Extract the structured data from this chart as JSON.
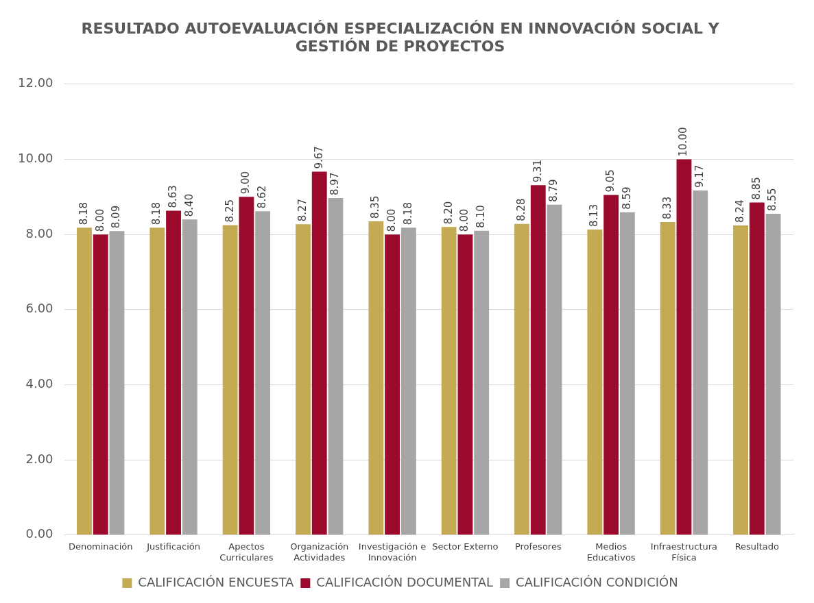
{
  "chart_data": {
    "type": "bar",
    "title": "RESULTADO AUTOEVALUACIÓN ESPECIALIZACIÓN EN INNOVACIÓN SOCIAL Y GESTIÓN DE PROYECTOS",
    "categories": [
      "Denominación",
      "Justificación",
      "Apectos Curriculares",
      "Organización Actividades",
      "Investigación e Innovación",
      "Sector Externo",
      "Profesores",
      "Medios Educativos",
      "Infraestructura Física",
      "Resultado"
    ],
    "series": [
      {
        "name": "CALIFICACIÓN ENCUESTA",
        "color": "#c4aa52",
        "values": [
          8.18,
          8.18,
          8.25,
          8.27,
          8.35,
          8.2,
          8.28,
          8.13,
          8.33,
          8.24
        ],
        "value_labels": [
          "8.18",
          "8.18",
          "8.25",
          "8.27",
          "8.35",
          "8.20",
          "8.28",
          "8.13",
          "8.33",
          "8.24"
        ]
      },
      {
        "name": "CALIFICACIÓN DOCUMENTAL",
        "color": "#9b0a2c",
        "values": [
          8.0,
          8.63,
          9.0,
          9.67,
          8.0,
          8.0,
          9.31,
          9.05,
          10.0,
          8.85
        ],
        "value_labels": [
          "8.00",
          "8.63",
          "9.00",
          "9.67",
          "8.00",
          "8.00",
          "9.31",
          "9.05",
          "10.00",
          "8.85"
        ]
      },
      {
        "name": "CALIFICACIÓN CONDICIÓN",
        "color": "#a6a6a6",
        "values": [
          8.09,
          8.4,
          8.62,
          8.97,
          8.18,
          8.1,
          8.79,
          8.59,
          9.17,
          8.55
        ],
        "value_labels": [
          "8.09",
          "8.40",
          "8.62",
          "8.97",
          "8.18",
          "8.10",
          "8.79",
          "8.59",
          "9.17",
          "8.55"
        ]
      }
    ],
    "ylim": [
      0,
      12
    ],
    "yticks": [
      {
        "value": 0,
        "label": "0.00"
      },
      {
        "value": 2,
        "label": "2.00"
      },
      {
        "value": 4,
        "label": "4.00"
      },
      {
        "value": 6,
        "label": "6.00"
      },
      {
        "value": 8,
        "label": "8.00"
      },
      {
        "value": 10,
        "label": "10.00"
      },
      {
        "value": 12,
        "label": "12.00"
      }
    ],
    "grid": "y",
    "legend": "bottom"
  }
}
